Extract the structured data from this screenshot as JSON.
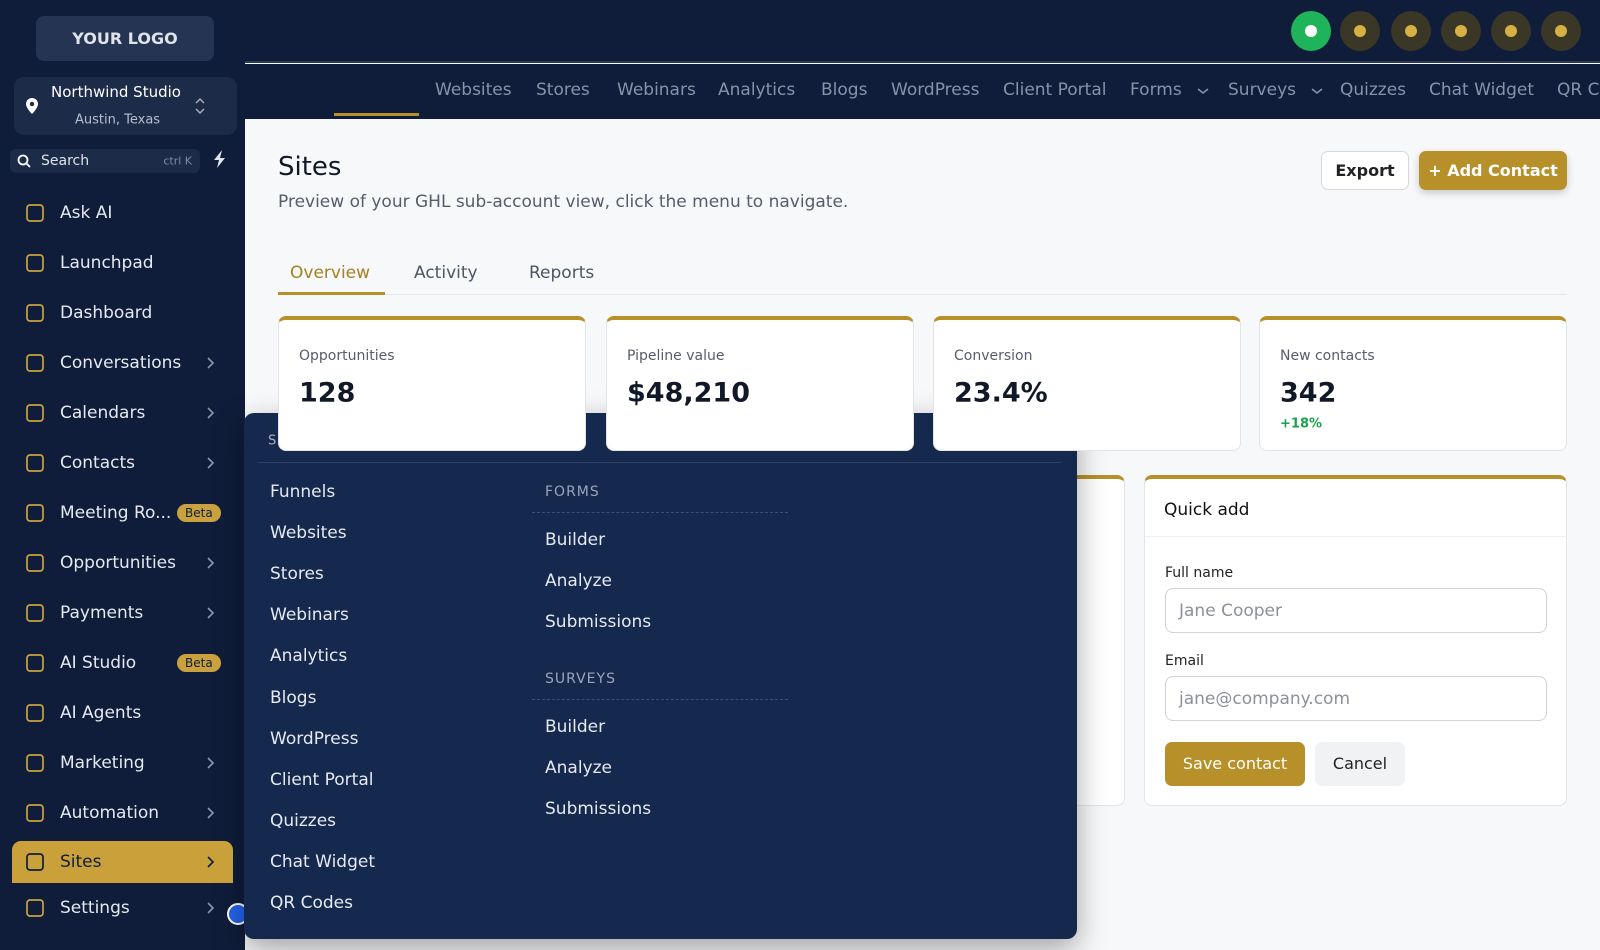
{
  "sidebar": {
    "logo": "YOUR LOGO",
    "account": {
      "name": "Northwind Studio",
      "location": "Austin, Texas"
    },
    "search": {
      "placeholder": "Search",
      "shortcut": "ctrl K"
    },
    "items": [
      {
        "label": "Ask AI"
      },
      {
        "label": "Launchpad"
      },
      {
        "label": "Dashboard"
      },
      {
        "label": "Conversations",
        "chevron": true
      },
      {
        "label": "Calendars",
        "chevron": true
      },
      {
        "label": "Contacts",
        "chevron": true
      },
      {
        "label": "Meeting Ro...",
        "badge": "Beta"
      },
      {
        "label": "Opportunities",
        "chevron": true
      },
      {
        "label": "Payments",
        "chevron": true
      },
      {
        "label": "AI Studio",
        "badge": "Beta"
      },
      {
        "label": "AI Agents"
      },
      {
        "label": "Marketing",
        "chevron": true
      },
      {
        "label": "Automation",
        "chevron": true
      },
      {
        "label": "Sites",
        "chevron": true,
        "active": true
      },
      {
        "label": "Settings",
        "chevron": true
      }
    ]
  },
  "topnav": {
    "tabs": [
      {
        "label": "Websites"
      },
      {
        "label": "Stores"
      },
      {
        "label": "Webinars"
      },
      {
        "label": "Analytics"
      },
      {
        "label": "Blogs"
      },
      {
        "label": "WordPress"
      },
      {
        "label": "Client Portal"
      },
      {
        "label": "Forms",
        "chevron": true
      },
      {
        "label": "Surveys",
        "chevron": true
      },
      {
        "label": "Quizzes"
      },
      {
        "label": "Chat Widget"
      },
      {
        "label": "QR Codes"
      }
    ]
  },
  "page": {
    "title": "Sites",
    "subtitle": "Preview of your GHL sub-account view, click the menu to navigate.",
    "buttons": {
      "export": "Export",
      "add": "+ Add Contact"
    },
    "tabs": [
      "Overview",
      "Activity",
      "Reports"
    ]
  },
  "stats": [
    {
      "label": "Opportunities",
      "value": "128"
    },
    {
      "label": "Pipeline value",
      "value": "$48,210"
    },
    {
      "label": "Conversion",
      "value": "23.4%"
    },
    {
      "label": "New contacts",
      "value": "342",
      "delta": "+18%"
    }
  ],
  "quick_add": {
    "title": "Quick add",
    "fields": [
      {
        "label": "Full name",
        "placeholder": "Jane Cooper"
      },
      {
        "label": "Email",
        "placeholder": "jane@company.com"
      }
    ],
    "save": "Save contact",
    "cancel": "Cancel"
  },
  "menu": {
    "heading": "SITES",
    "items": [
      "Funnels",
      "Websites",
      "Stores",
      "Webinars",
      "Analytics",
      "Blogs",
      "WordPress",
      "Client Portal",
      "Quizzes",
      "Chat Widget",
      "QR Codes"
    ],
    "groups": [
      {
        "heading": "FORMS",
        "items": [
          "Builder",
          "Analyze",
          "Submissions"
        ]
      },
      {
        "heading": "SURVEYS",
        "items": [
          "Builder",
          "Analyze",
          "Submissions"
        ]
      }
    ]
  }
}
